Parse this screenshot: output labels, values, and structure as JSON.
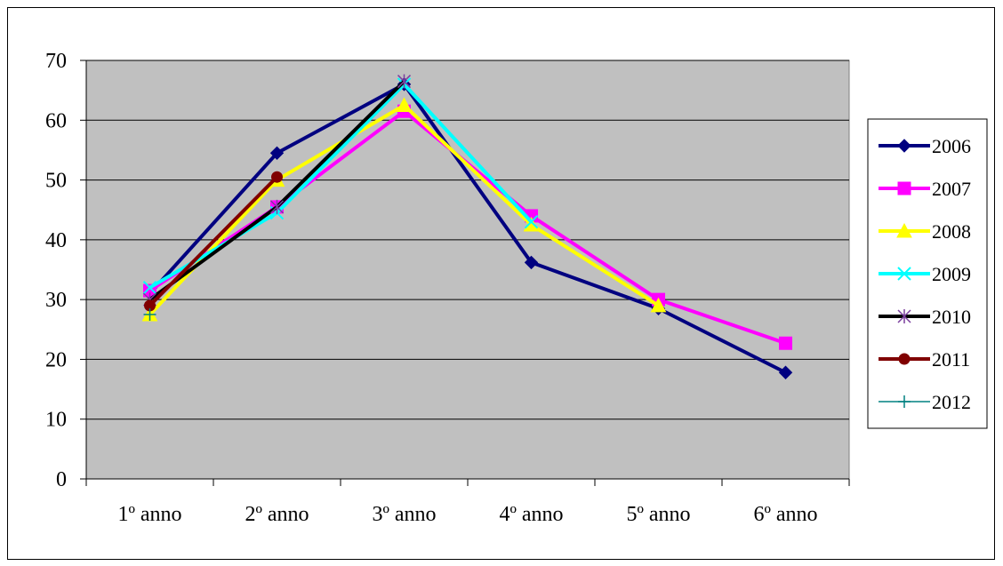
{
  "chart_data": {
    "type": "line",
    "title": "",
    "xlabel": "",
    "ylabel": "",
    "categories": [
      "1º anno",
      "2º anno",
      "3º anno",
      "4º anno",
      "5º anno",
      "6º anno"
    ],
    "ylim": [
      0,
      70
    ],
    "yticks": [
      0,
      10,
      20,
      30,
      40,
      50,
      60,
      70
    ],
    "grid": true,
    "plot_background": "#c0c0c0",
    "legend_position": "right",
    "series": [
      {
        "name": "2006",
        "color": "#000080",
        "marker": "diamond",
        "values": [
          31,
          54.5,
          66,
          36.2,
          28.5,
          17.8
        ]
      },
      {
        "name": "2007",
        "color": "#ff00ff",
        "marker": "square",
        "values": [
          31.5,
          45.5,
          61.5,
          44,
          30,
          22.7
        ]
      },
      {
        "name": "2008",
        "color": "#ffff00",
        "marker": "triangle",
        "values": [
          27.5,
          50,
          62.5,
          42.5,
          29,
          null
        ]
      },
      {
        "name": "2009",
        "color": "#00ffff",
        "marker": "x",
        "values": [
          32,
          44.5,
          66,
          43,
          null,
          null
        ]
      },
      {
        "name": "2010",
        "color": "#000000",
        "marker": "star",
        "values": [
          30,
          45.5,
          66.5,
          null,
          null,
          null
        ]
      },
      {
        "name": "2011",
        "color": "#800000",
        "marker": "circle",
        "values": [
          29,
          50.5,
          null,
          null,
          null,
          null
        ]
      },
      {
        "name": "2012",
        "color": "#008080",
        "marker": "plus",
        "values": [
          27.5,
          null,
          null,
          null,
          null,
          null
        ]
      }
    ]
  }
}
